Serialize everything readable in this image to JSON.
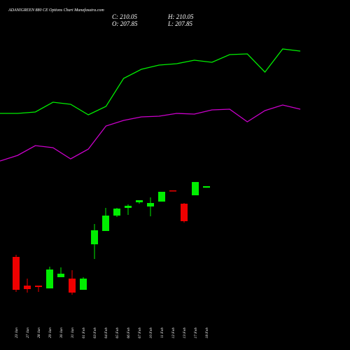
{
  "chart_data": {
    "type": "candlestick",
    "title": "ADANIGREEN 880 CE Options Chart Munafasutra.com",
    "close_label": "C: 210.05",
    "high_label": "H: 210.05",
    "open_label": "O: 207.85",
    "low_label": "L: 207.85",
    "categories": [
      "23 Jan",
      "27 Jan",
      "28 Jan",
      "29 Jan",
      "30 Jan",
      "31 Jan",
      "01 Feb",
      "03 Feb",
      "04 Feb",
      "05 Feb",
      "06 Feb",
      "07 Feb",
      "10 Feb",
      "11 Feb",
      "12 Feb",
      "13 Feb",
      "17 Feb",
      "18 Feb"
    ],
    "open": [
      109,
      68,
      68,
      64,
      80,
      78,
      62,
      127,
      146,
      168,
      179,
      187,
      181,
      188,
      204,
      185,
      197,
      207.85
    ],
    "high": [
      112,
      78,
      68,
      95,
      94,
      90,
      80,
      156,
      179,
      179,
      184,
      190,
      194,
      202,
      204,
      186,
      216,
      210.05
    ],
    "low": [
      59,
      58,
      59,
      64,
      80,
      55,
      62,
      106,
      146,
      166,
      169,
      185,
      167,
      188,
      203.5,
      158,
      197,
      207.85
    ],
    "close": [
      62,
      63,
      66,
      91,
      85,
      58,
      78,
      147,
      168,
      178,
      182,
      190,
      186,
      202,
      203.5,
      160,
      216,
      210.05
    ],
    "up_color": "#00ee00",
    "down_color": "#ee0000",
    "lines": [
      {
        "color": "#00ee00",
        "values": [
          314,
          314,
          316,
          330,
          327,
          312,
          324,
          364,
          377,
          383,
          385,
          390,
          387,
          398,
          399,
          373,
          406,
          403
        ]
      },
      {
        "color": "#cc00cc",
        "values": [
          246,
          254,
          268,
          265,
          249,
          263,
          296,
          304,
          309,
          310,
          314,
          313,
          319,
          320,
          302,
          318,
          326,
          320
        ]
      }
    ],
    "ylim": [
      0,
      476
    ]
  }
}
